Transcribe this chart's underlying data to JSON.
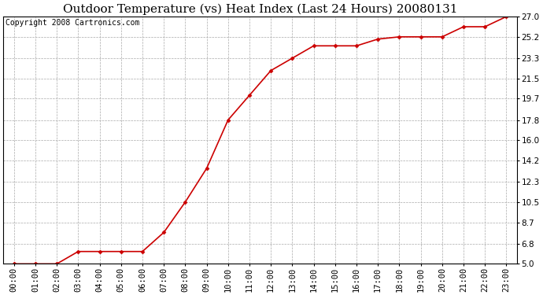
{
  "title": "Outdoor Temperature (vs) Heat Index (Last 24 Hours) 20080131",
  "copyright_text": "Copyright 2008 Cartronics.com",
  "x_labels": [
    "00:00",
    "01:00",
    "02:00",
    "03:00",
    "04:00",
    "05:00",
    "06:00",
    "07:00",
    "08:00",
    "09:00",
    "10:00",
    "11:00",
    "12:00",
    "13:00",
    "14:00",
    "15:00",
    "16:00",
    "17:00",
    "18:00",
    "19:00",
    "20:00",
    "21:00",
    "22:00",
    "23:00"
  ],
  "y_values": [
    5.0,
    5.0,
    5.0,
    6.1,
    6.1,
    6.1,
    6.1,
    7.8,
    10.5,
    13.5,
    17.8,
    20.0,
    22.2,
    23.3,
    24.4,
    24.4,
    24.4,
    25.0,
    25.2,
    25.2,
    25.2,
    26.1,
    26.1,
    27.0
  ],
  "line_color": "#cc0000",
  "marker": "D",
  "marker_size": 3,
  "background_color": "#ffffff",
  "plot_bg_color": "#ffffff",
  "grid_color": "#aaaaaa",
  "ylim": [
    5.0,
    27.0
  ],
  "yticks": [
    5.0,
    6.8,
    8.7,
    10.5,
    12.3,
    14.2,
    16.0,
    17.8,
    19.7,
    21.5,
    23.3,
    25.2,
    27.0
  ],
  "title_fontsize": 11,
  "tick_fontsize": 7.5,
  "copyright_fontsize": 7
}
